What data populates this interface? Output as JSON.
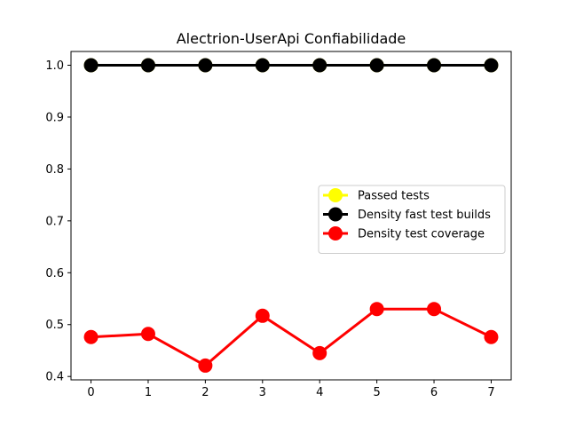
{
  "chart_data": {
    "type": "line",
    "title": "Alectrion-UserApi Confiabilidade",
    "xlabel": "",
    "ylabel": "",
    "x": [
      0,
      1,
      2,
      3,
      4,
      5,
      6,
      7
    ],
    "xlim": [
      -0.35,
      7.35
    ],
    "ylim": [
      0.3935,
      1.0265
    ],
    "xticks": [
      "0",
      "1",
      "2",
      "3",
      "4",
      "5",
      "6",
      "7"
    ],
    "yticks": [
      "0.4",
      "0.5",
      "0.6",
      "0.7",
      "0.8",
      "0.9",
      "1.0"
    ],
    "grid": false,
    "legend_position": "center-right",
    "series": [
      {
        "name": "Passed tests",
        "color": "#ffff00",
        "values": [
          1.0,
          1.0,
          1.0,
          1.0,
          1.0,
          1.0,
          1.0,
          1.0
        ]
      },
      {
        "name": "Density fast test builds",
        "color": "#000000",
        "values": [
          1.0,
          1.0,
          1.0,
          1.0,
          1.0,
          1.0,
          1.0,
          1.0
        ]
      },
      {
        "name": "Density test coverage",
        "color": "#ff0000",
        "values": [
          0.476,
          0.482,
          0.421,
          0.517,
          0.445,
          0.53,
          0.53,
          0.476
        ]
      }
    ]
  }
}
